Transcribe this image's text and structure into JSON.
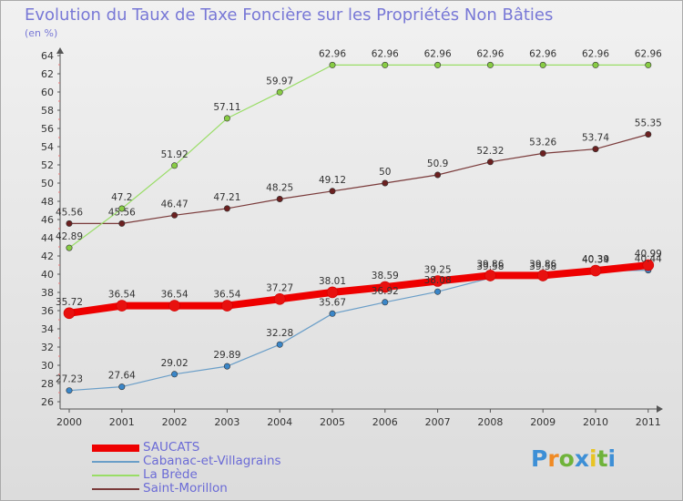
{
  "header": {
    "title": "Evolution du Taux de Taxe Foncière sur les Propriétés Non Bâties",
    "unit": "(en %)"
  },
  "logo": {
    "text": "Proxiti",
    "colors": [
      "#3d8fd6",
      "#f08a24",
      "#6fb33a",
      "#3d8fd6",
      "#e8c424",
      "#6fb33a",
      "#3d8fd6"
    ]
  },
  "chart_data": {
    "type": "line",
    "x": [
      "2000",
      "2001",
      "2002",
      "2003",
      "2004",
      "2005",
      "2006",
      "2007",
      "2008",
      "2009",
      "2010",
      "2011"
    ],
    "ylim": [
      26,
      64
    ],
    "yticks": [
      26,
      28,
      30,
      32,
      34,
      36,
      38,
      40,
      42,
      44,
      46,
      48,
      50,
      52,
      54,
      56,
      58,
      60,
      62,
      64
    ],
    "grid": false,
    "legend_position": "bottom-left",
    "series": [
      {
        "name": "Saint-Morillon",
        "color": "#6b2020",
        "line_color": "#7a3a3a",
        "width": 1.2,
        "values": [
          45.56,
          45.56,
          46.47,
          47.21,
          48.25,
          49.12,
          50,
          50.9,
          52.32,
          53.26,
          53.74,
          55.35
        ],
        "labels": [
          "45.56",
          "45.56",
          "46.47",
          "47.21",
          "48.25",
          "49.12",
          "50",
          "50.9",
          "52.32",
          "53.26",
          "53.74",
          "55.35"
        ]
      },
      {
        "name": "La Brède",
        "color": "#88cc44",
        "line_color": "#99dd66",
        "width": 1.2,
        "values": [
          42.89,
          47.2,
          51.92,
          57.11,
          59.97,
          62.96,
          62.96,
          62.96,
          62.96,
          62.96,
          62.96,
          62.96
        ],
        "labels": [
          "42.89",
          "47.2",
          "51.92",
          "57.11",
          "59.97",
          "62.96",
          "62.96",
          "62.96",
          "62.96",
          "62.96",
          "62.96",
          "62.96"
        ]
      },
      {
        "name": "Cabanac-et-Villagrains",
        "color": "#3a86c8",
        "line_color": "#6a9ec8",
        "width": 1.2,
        "values": [
          27.23,
          27.64,
          29.02,
          29.89,
          32.28,
          35.67,
          36.92,
          38.08,
          39.58,
          39.58,
          40.34,
          40.44
        ],
        "labels": [
          "27.23",
          "27.64",
          "29.02",
          "29.89",
          "32.28",
          "35.67",
          "36.92",
          "38.08",
          "39.58",
          "39.58",
          "40.34",
          "40.44"
        ]
      },
      {
        "name": "SAUCATS",
        "color": "#e8110f",
        "line_color": "#ee0000",
        "width": 8,
        "values": [
          35.72,
          36.54,
          36.54,
          36.54,
          37.27,
          38.01,
          38.59,
          39.25,
          39.86,
          39.86,
          40.39,
          40.99
        ],
        "labels": [
          "35.72",
          "36.54",
          "36.54",
          "36.54",
          "37.27",
          "38.01",
          "38.59",
          "39.25",
          "39.86",
          "39.86",
          "40.39",
          "40.99"
        ]
      }
    ]
  },
  "legend": [
    {
      "name": "SAUCATS",
      "color": "#ee0000",
      "thick": true
    },
    {
      "name": "Cabanac-et-Villagrains",
      "color": "#6a9ec8",
      "thick": false
    },
    {
      "name": "La Brède",
      "color": "#99dd66",
      "thick": false
    },
    {
      "name": "Saint-Morillon",
      "color": "#7a3a3a",
      "thick": false
    }
  ]
}
